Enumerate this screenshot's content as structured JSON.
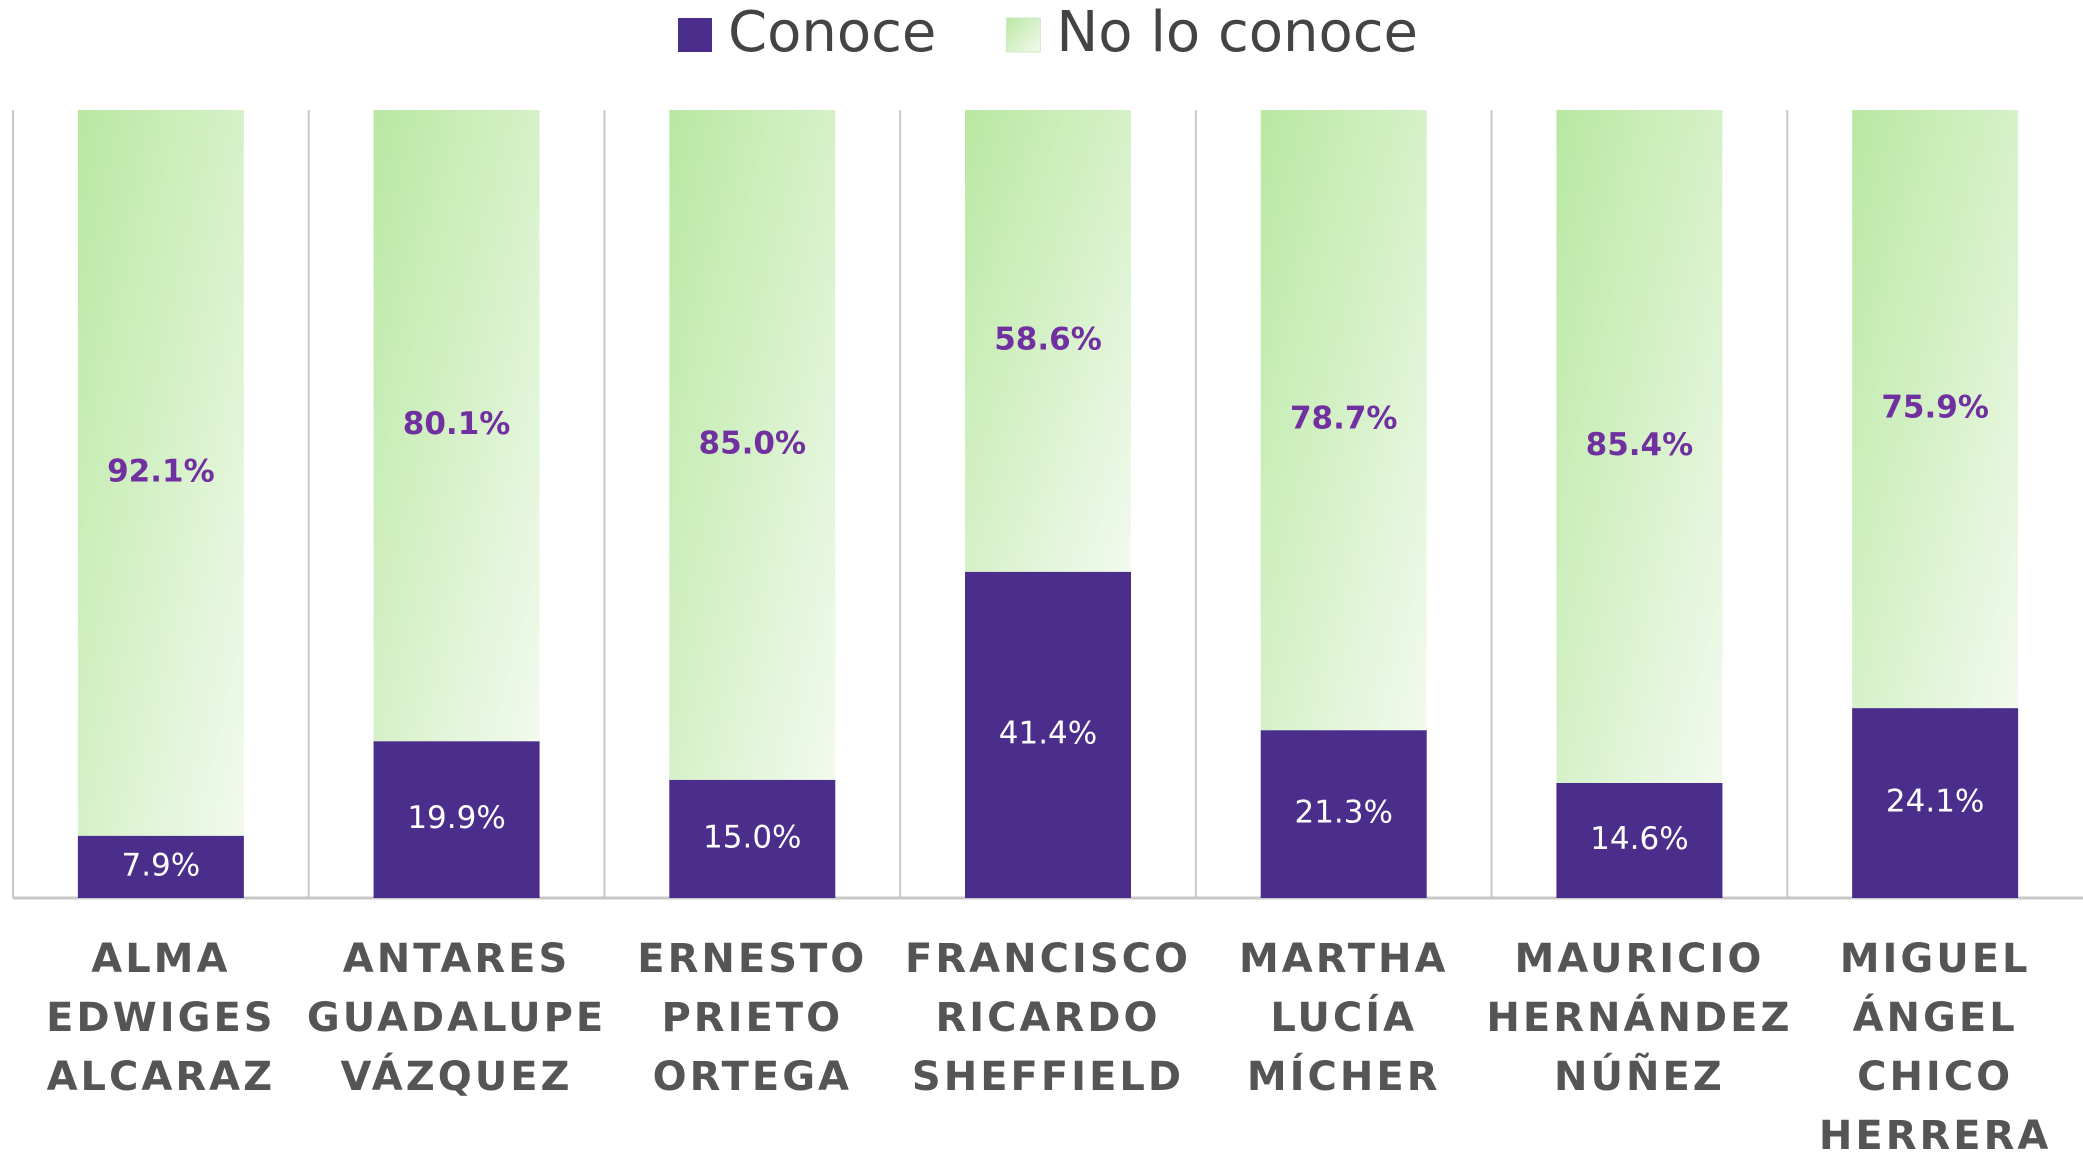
{
  "chart_data": {
    "type": "stacked_bar",
    "categories": [
      "ALMA EDWIGES ALCARAZ",
      "ANTARES GUADALUPE VÁZQUEZ",
      "ERNESTO PRIETO ORTEGA",
      "FRANCISCO RICARDO SHEFFIELD",
      "MARTHA LUCÍA MÍCHER",
      "MAURICIO HERNÁNDEZ NÚÑEZ",
      "MIGUEL ÁNGEL CHICO HERRERA"
    ],
    "series": [
      {
        "name": "Conoce",
        "color": "#4b2e8c",
        "values": [
          7.9,
          19.9,
          15.0,
          41.4,
          21.3,
          14.6,
          24.1
        ],
        "value_labels": [
          "7.9%",
          "19.9%",
          "15.0%",
          "41.4%",
          "21.3%",
          "14.6%",
          "24.1%"
        ]
      },
      {
        "name": "No lo conoce",
        "color": "#b9e8a2",
        "values": [
          92.1,
          80.1,
          85.0,
          58.6,
          78.7,
          85.4,
          75.9
        ],
        "value_labels": [
          "92.1%",
          "80.1%",
          "85.0%",
          "58.6%",
          "78.7%",
          "85.4%",
          "75.9%"
        ]
      }
    ],
    "ylim": [
      0,
      100
    ],
    "legend": "top"
  }
}
